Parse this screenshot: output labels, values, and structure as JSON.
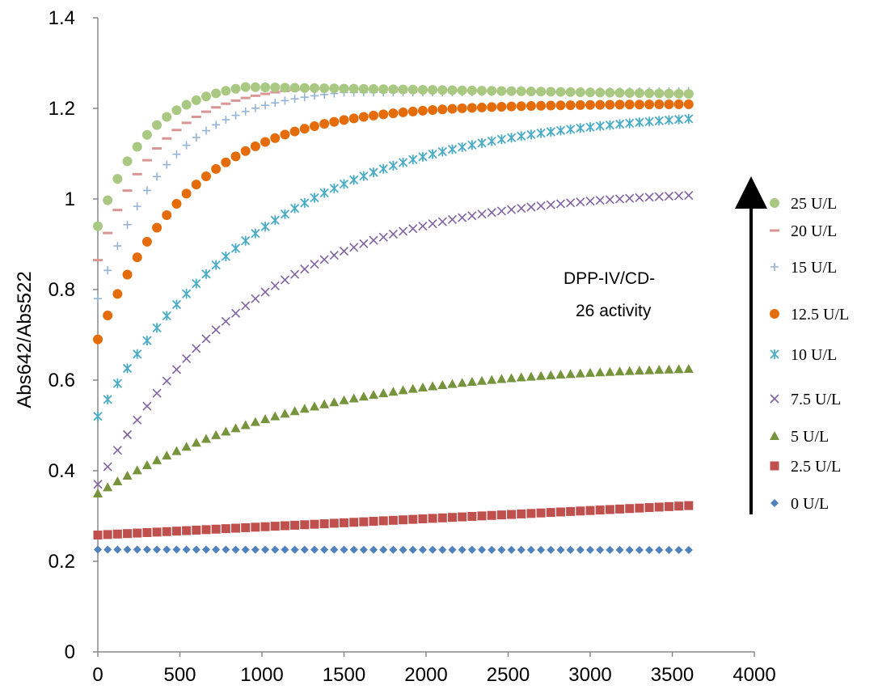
{
  "chart_data": {
    "type": "scatter",
    "ylabel": "Abs642/Abs522",
    "xlabel": "",
    "xlim": [
      0,
      4000
    ],
    "ylim": [
      0,
      1.4
    ],
    "x_ticks": [
      "0",
      "500",
      "1000",
      "1500",
      "2000",
      "2500",
      "3000",
      "3500",
      "4000"
    ],
    "y_ticks": [
      "0",
      "0.2",
      "0.4",
      "0.6",
      "0.8",
      "1",
      "1.2",
      "1.4"
    ],
    "grid": false,
    "legend_position": "right",
    "annotation": [
      "DPP-IV/CD-",
      "26 activity"
    ],
    "x": {
      "start": 0,
      "end": 3600,
      "step": 60
    },
    "series": [
      {
        "name": "25   U/L",
        "color": "#a9c983",
        "marker": "circle",
        "start": 0.94,
        "max": 1.265,
        "rate": 310,
        "peak_at": 900,
        "end": 1.232
      },
      {
        "name": "20   U/L",
        "color": "#d99694",
        "marker": "dash",
        "start": 0.865,
        "max": 1.255,
        "rate": 360,
        "peak_at": 1300,
        "end": 1.232
      },
      {
        "name": "15   U/L",
        "color": "#95b3d7",
        "marker": "plus",
        "start": 0.78,
        "max": 1.248,
        "rate": 420,
        "peak_at": 1500,
        "end": 1.238
      },
      {
        "name": "12.5 U/L",
        "color": "#e46c0a",
        "marker": "circle",
        "start": 0.69,
        "max": 1.21,
        "rate": 560,
        "end": 1.21
      },
      {
        "name": "10   U/L",
        "color": "#4bacc6",
        "marker": "star",
        "start": 0.52,
        "max": 1.19,
        "rate": 1050,
        "end": 1.177
      },
      {
        "name": "7.5 U/L",
        "color": "#8064a2",
        "marker": "cross",
        "start": 0.37,
        "max": 1.04,
        "rate": 1000,
        "end": 1.008
      },
      {
        "name": "5   U/L",
        "color": "#77933c",
        "marker": "triangle",
        "start": 0.35,
        "max": 0.66,
        "rate": 1300,
        "end": 0.625
      },
      {
        "name": "2.5 U/L",
        "color": "#c0504d",
        "marker": "square",
        "start": 0.258,
        "linear": true,
        "end": 0.323
      },
      {
        "name": "0   U/L",
        "color": "#4f81bd",
        "marker": "diamond",
        "start": 0.226,
        "linear": true,
        "end": 0.225
      }
    ]
  }
}
